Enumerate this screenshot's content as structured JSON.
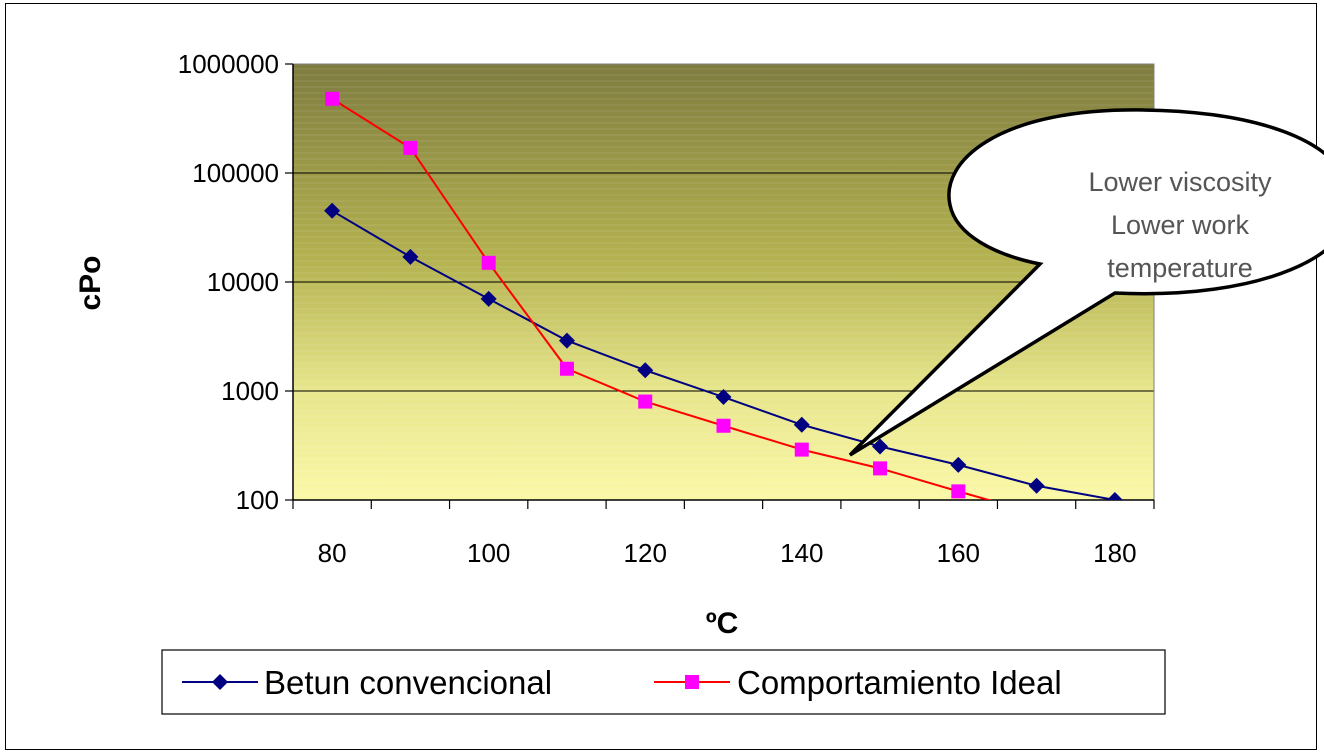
{
  "chart_data": {
    "type": "line",
    "xlabel": "ºC",
    "ylabel": "cPo",
    "x": [
      80,
      90,
      100,
      110,
      120,
      130,
      140,
      150,
      160,
      170,
      180
    ],
    "x_ticks": [
      "80",
      "100",
      "120",
      "140",
      "160",
      "180"
    ],
    "xlim": [
      75,
      185
    ],
    "y_scale": "log",
    "ylim": [
      100,
      1000000
    ],
    "y_ticks": [
      "100",
      "1000",
      "10000",
      "100000",
      "1000000"
    ],
    "y_tick_values": [
      100,
      1000,
      10000,
      100000,
      1000000
    ],
    "grid": "horizontal",
    "legend_position": "bottom",
    "background": "gradient olive-green (top) to pale yellow (bottom)",
    "series": [
      {
        "name": "Betun convencional",
        "color": "#000080",
        "marker": "diamond",
        "values": [
          45000,
          17000,
          7000,
          2900,
          1550,
          880,
          490,
          310,
          210,
          135,
          100
        ]
      },
      {
        "name": "Comportamiento Ideal",
        "color": "#FF0000",
        "marker_color": "#FF00FF",
        "marker": "square",
        "values": [
          480000,
          170000,
          15000,
          1600,
          800,
          480,
          290,
          195,
          120,
          75,
          null
        ]
      }
    ],
    "annotation": {
      "lines": [
        "Lower viscosity",
        "Lower work",
        "temperature"
      ],
      "style": "speech-bubble callout"
    }
  }
}
